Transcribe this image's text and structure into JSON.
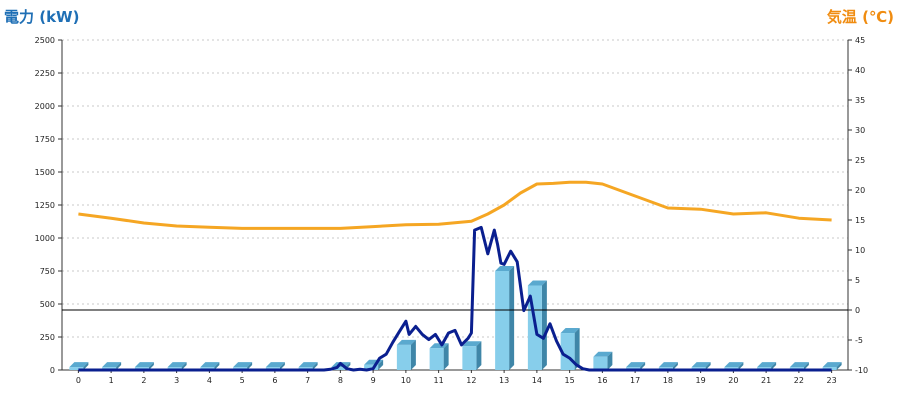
{
  "chart_data": {
    "type": "bar",
    "left_axis": {
      "label": "電力 (kW)",
      "min": 0,
      "max": 2500,
      "ticks": [
        0,
        250,
        500,
        750,
        1000,
        1250,
        1500,
        1750,
        2000,
        2250,
        2500
      ]
    },
    "right_axis": {
      "label": "気温 (℃)",
      "min": -10,
      "max": 45,
      "ticks": [
        -10,
        -5,
        0,
        5,
        10,
        15,
        20,
        25,
        30,
        35,
        40,
        45
      ]
    },
    "categories": [
      "0",
      "1",
      "2",
      "3",
      "4",
      "5",
      "6",
      "7",
      "8",
      "9",
      "10",
      "11",
      "12",
      "13",
      "14",
      "15",
      "16",
      "17",
      "18",
      "19",
      "20",
      "21",
      "22",
      "23"
    ],
    "series": [
      {
        "type": "bar",
        "axis": "left",
        "color": "#87ceeb",
        "values": [
          22,
          22,
          22,
          22,
          22,
          22,
          22,
          22,
          22,
          40,
          190,
          165,
          180,
          750,
          640,
          280,
          100,
          22,
          22,
          22,
          22,
          22,
          22,
          22
        ]
      },
      {
        "type": "line",
        "axis": "left",
        "color": "#0a1f8f",
        "x": [
          0,
          7.5,
          7.7,
          7.9,
          8.0,
          8.2,
          8.4,
          8.6,
          8.8,
          9.0,
          9.2,
          9.4,
          9.6,
          9.8,
          10.0,
          10.1,
          10.3,
          10.5,
          10.7,
          10.9,
          11.1,
          11.3,
          11.5,
          11.7,
          11.9,
          12.0,
          12.1,
          12.3,
          12.5,
          12.7,
          12.8,
          12.9,
          13.0,
          13.2,
          13.4,
          13.6,
          13.8,
          14.0,
          14.2,
          14.4,
          14.6,
          14.8,
          15.0,
          15.2,
          15.4,
          15.6,
          15.8,
          16.0,
          16.2,
          17.0,
          23.0
        ],
        "values": [
          0,
          0,
          5,
          20,
          50,
          10,
          0,
          5,
          0,
          10,
          90,
          120,
          210,
          290,
          370,
          270,
          330,
          270,
          230,
          270,
          190,
          280,
          300,
          190,
          240,
          280,
          1060,
          1080,
          880,
          1060,
          950,
          810,
          800,
          900,
          820,
          450,
          560,
          270,
          240,
          350,
          220,
          120,
          90,
          40,
          10,
          0,
          0,
          0,
          0,
          0,
          0
        ]
      },
      {
        "type": "line",
        "axis": "right",
        "color": "#f5a623",
        "x": [
          0,
          1,
          2,
          3,
          4,
          5,
          6,
          7,
          8,
          9,
          10,
          11,
          12,
          12.5,
          13,
          13.5,
          14,
          14.5,
          15,
          15.5,
          16,
          17,
          18,
          19,
          20,
          21,
          22,
          23
        ],
        "values": [
          16,
          15.3,
          14.5,
          14,
          13.8,
          13.6,
          13.6,
          13.6,
          13.6,
          13.9,
          14.2,
          14.3,
          14.8,
          16,
          17.5,
          19.5,
          21,
          21.1,
          21.3,
          21.3,
          21,
          19,
          17,
          16.8,
          16,
          16.2,
          15.3,
          15
        ]
      }
    ],
    "reference_line": {
      "axis": "right",
      "value": 0,
      "color": "#000000"
    }
  }
}
